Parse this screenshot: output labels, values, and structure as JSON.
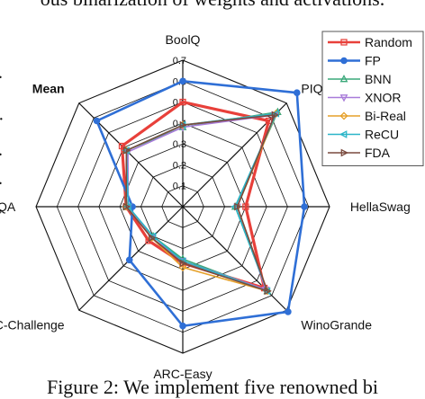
{
  "page": {
    "top_text": "ous binarization of weights and activations.",
    "bottom_text": "Figure 2: We implement five renowned bi",
    "left_marks": [
      ".",
      "·",
      ".",
      ".",
      ","
    ]
  },
  "chart_data": {
    "type": "radar",
    "title": "Mean",
    "categories": [
      "BoolQ",
      "PIQA",
      "HellaSwag",
      "WinoGrande",
      "ARC-Easy",
      "ARC-Challenge",
      "OBQA",
      "Mean"
    ],
    "radial_ticks": [
      "0.1",
      "0.2",
      "0.3",
      "0.4",
      "0.5",
      "0.6",
      "0.7"
    ],
    "rlim": [
      0,
      0.7
    ],
    "grid": true,
    "legend_position": "top-right",
    "series": [
      {
        "name": "Random",
        "color": "#e8403a",
        "marker": "square",
        "values": [
          0.5,
          0.58,
          0.3,
          0.55,
          0.27,
          0.23,
          0.27,
          0.41
        ],
        "width": 3.2
      },
      {
        "name": "FP",
        "color": "#2f6fd6",
        "marker": "circle",
        "values": [
          0.6,
          0.77,
          0.58,
          0.71,
          0.57,
          0.36,
          0.24,
          0.58
        ],
        "width": 2.6
      },
      {
        "name": "BNN",
        "color": "#3aa87a",
        "marker": "triangle-up",
        "values": [
          0.38,
          0.64,
          0.25,
          0.57,
          0.25,
          0.2,
          0.27,
          0.38
        ],
        "width": 1.6
      },
      {
        "name": "XNOR",
        "color": "#a87bd9",
        "marker": "triangle-down",
        "values": [
          0.38,
          0.62,
          0.26,
          0.56,
          0.26,
          0.21,
          0.26,
          0.37
        ],
        "width": 1.6
      },
      {
        "name": "Bi-Real",
        "color": "#e6a12a",
        "marker": "diamond",
        "values": [
          0.39,
          0.63,
          0.26,
          0.57,
          0.29,
          0.21,
          0.27,
          0.38
        ],
        "width": 1.6
      },
      {
        "name": "ReCU",
        "color": "#2ab5c8",
        "marker": "triangle-left",
        "values": [
          0.39,
          0.63,
          0.25,
          0.57,
          0.26,
          0.2,
          0.26,
          0.38
        ],
        "width": 1.6
      },
      {
        "name": "FDA",
        "color": "#7a4a3e",
        "marker": "triangle-right",
        "values": [
          0.39,
          0.62,
          0.26,
          0.57,
          0.27,
          0.21,
          0.27,
          0.38
        ],
        "width": 1.6
      }
    ]
  }
}
